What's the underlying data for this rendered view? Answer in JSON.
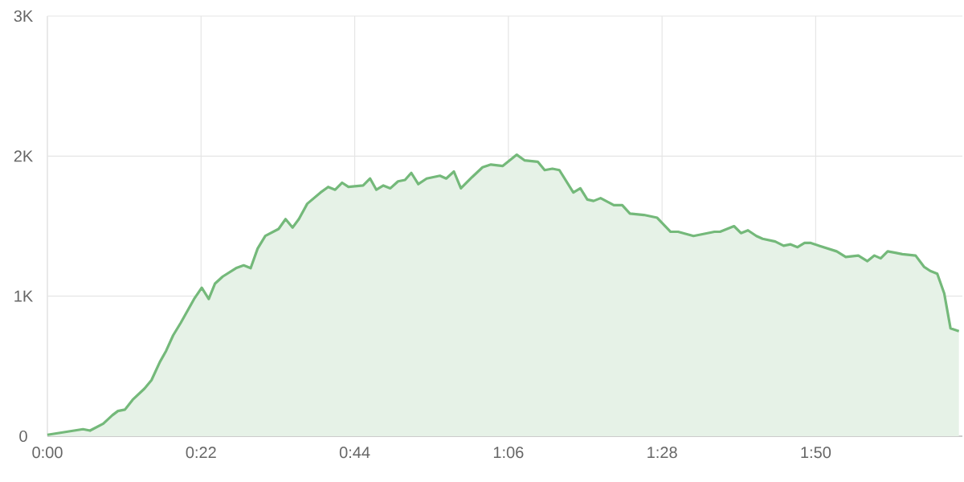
{
  "chart_data": {
    "type": "area",
    "x": [
      0,
      5.1,
      6.1,
      8.0,
      9.3,
      10.1,
      11.1,
      12.2,
      13.9,
      14.9,
      16.1,
      17.0,
      18.0,
      19.1,
      21.0,
      22.1,
      23.1,
      24.0,
      25.1,
      27.0,
      28.1,
      29.1,
      30.1,
      31.2,
      33.1,
      34.1,
      35.1,
      36.0,
      37.2,
      39.1,
      40.2,
      41.2,
      42.2,
      43.1,
      45.2,
      46.2,
      47.1,
      48.1,
      49.1,
      50.2,
      51.2,
      52.1,
      53.1,
      54.3,
      56.2,
      57.1,
      58.2,
      59.2,
      60.8,
      62.3,
      63.5,
      65.2,
      67.2,
      68.3,
      70.2,
      71.2,
      72.3,
      73.3,
      75.3,
      76.3,
      77.3,
      78.2,
      79.2,
      81.1,
      82.3,
      83.4,
      85.4,
      87.3,
      89.2,
      90.3,
      92.5,
      95.5,
      96.3,
      98.3,
      99.3,
      100.3,
      101.5,
      102.4,
      104.2,
      105.4,
      106.4,
      107.4,
      108.4,
      109.3,
      110.5,
      113.0,
      114.3,
      116.1,
      117.4,
      118.4,
      119.3,
      120.3,
      121.4,
      122.4,
      124.3,
      125.5,
      126.4,
      127.4,
      128.4,
      129.3,
      130.5
    ],
    "series": [
      {
        "color": "#74b97a",
        "values": [
          10,
          50,
          40,
          90,
          150,
          180,
          190,
          260,
          340,
          400,
          530,
          610,
          720,
          810,
          980,
          1060,
          980,
          1090,
          1140,
          1200,
          1220,
          1200,
          1340,
          1430,
          1480,
          1550,
          1490,
          1550,
          1660,
          1740,
          1780,
          1760,
          1810,
          1780,
          1790,
          1840,
          1760,
          1790,
          1770,
          1820,
          1830,
          1880,
          1800,
          1840,
          1860,
          1840,
          1890,
          1770,
          1850,
          1920,
          1940,
          1930,
          2010,
          1970,
          1960,
          1900,
          1910,
          1900,
          1740,
          1770,
          1690,
          1680,
          1700,
          1650,
          1650,
          1590,
          1580,
          1560,
          1460,
          1460,
          1430,
          1460,
          1460,
          1500,
          1450,
          1470,
          1430,
          1410,
          1390,
          1360,
          1370,
          1350,
          1380,
          1380,
          1360,
          1320,
          1280,
          1290,
          1250,
          1290,
          1270,
          1320,
          1310,
          1300,
          1290,
          1210,
          1180,
          1160,
          1020,
          770,
          750
        ]
      }
    ],
    "xlim": [
      0,
      131
    ],
    "ylim": [
      0,
      3000
    ],
    "xticks": [
      {
        "value": 0,
        "label": "0:00"
      },
      {
        "value": 22,
        "label": "0:22"
      },
      {
        "value": 44,
        "label": "0:44"
      },
      {
        "value": 66,
        "label": "1:06"
      },
      {
        "value": 88,
        "label": "1:28"
      },
      {
        "value": 110,
        "label": "1:50"
      }
    ],
    "yticks": [
      0,
      {
        "value": 1000,
        "label": "1K"
      },
      {
        "value": 2000,
        "label": "2K"
      },
      {
        "value": 3000,
        "label": "3K"
      }
    ],
    "grid": true,
    "marker": "none",
    "line_style": "solid"
  }
}
